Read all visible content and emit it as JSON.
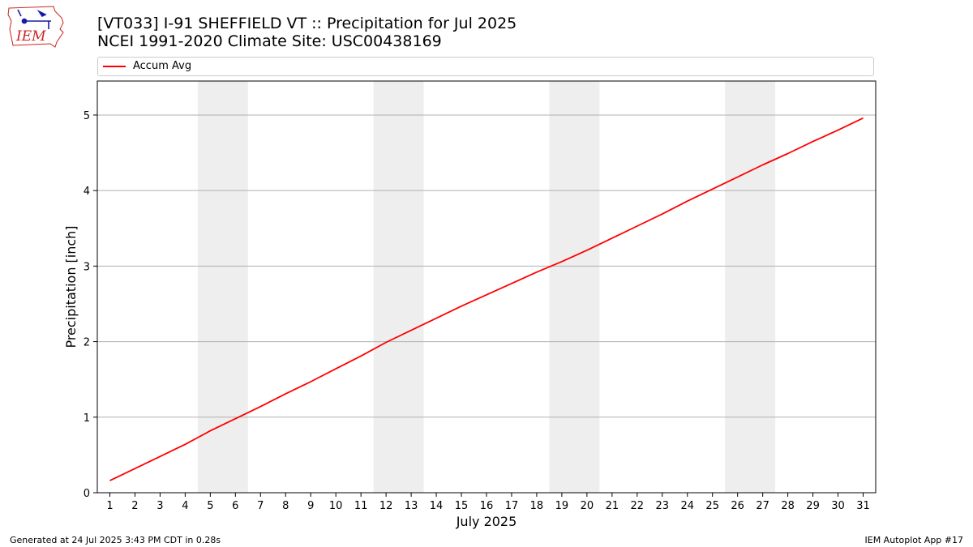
{
  "header": {
    "title_line1": "[VT033] I-91 SHEFFIELD  VT :: Precipitation for Jul 2025",
    "title_line2": "NCEI 1991-2020 Climate Site: USC00438169",
    "logo_text": "IEM"
  },
  "footer": {
    "generated": "Generated at 24 Jul 2025 3:43 PM CDT in 0.28s",
    "app": "IEM Autoplot App #17"
  },
  "colors": {
    "series": "#ff0000",
    "weekend_band": "#eeeeee",
    "grid": "#b0b0b0",
    "logo": "#cc2222",
    "logo_icon": "#1a1aa8"
  },
  "chart_data": {
    "type": "line",
    "title": "[VT033] I-91 SHEFFIELD  VT :: Precipitation for Jul 2025",
    "subtitle": "NCEI 1991-2020 Climate Site: USC00438169",
    "xlabel": "July 2025",
    "ylabel": "Precipitation [inch]",
    "xlim": [
      0.5,
      31.5
    ],
    "ylim": [
      0,
      5.45
    ],
    "x_ticks": [
      1,
      2,
      3,
      4,
      5,
      6,
      7,
      8,
      9,
      10,
      11,
      12,
      13,
      14,
      15,
      16,
      17,
      18,
      19,
      20,
      21,
      22,
      23,
      24,
      25,
      26,
      27,
      28,
      29,
      30,
      31
    ],
    "y_ticks": [
      0,
      1,
      2,
      3,
      4,
      5
    ],
    "grid": "y-major",
    "legend_position": "top",
    "weekend_bands": [
      [
        5,
        6
      ],
      [
        12,
        13
      ],
      [
        19,
        20
      ],
      [
        26,
        27
      ]
    ],
    "series": [
      {
        "name": "Accum Avg",
        "x": [
          1,
          2,
          3,
          4,
          5,
          6,
          7,
          8,
          9,
          10,
          11,
          12,
          13,
          14,
          15,
          16,
          17,
          18,
          19,
          20,
          21,
          22,
          23,
          24,
          25,
          26,
          27,
          28,
          29,
          30,
          31
        ],
        "values": [
          0.16,
          0.32,
          0.48,
          0.64,
          0.82,
          0.98,
          1.14,
          1.31,
          1.47,
          1.64,
          1.81,
          1.99,
          2.15,
          2.31,
          2.47,
          2.62,
          2.77,
          2.92,
          3.06,
          3.21,
          3.37,
          3.53,
          3.69,
          3.86,
          4.02,
          4.18,
          4.34,
          4.49,
          4.65,
          4.8,
          4.96
        ]
      }
    ]
  }
}
